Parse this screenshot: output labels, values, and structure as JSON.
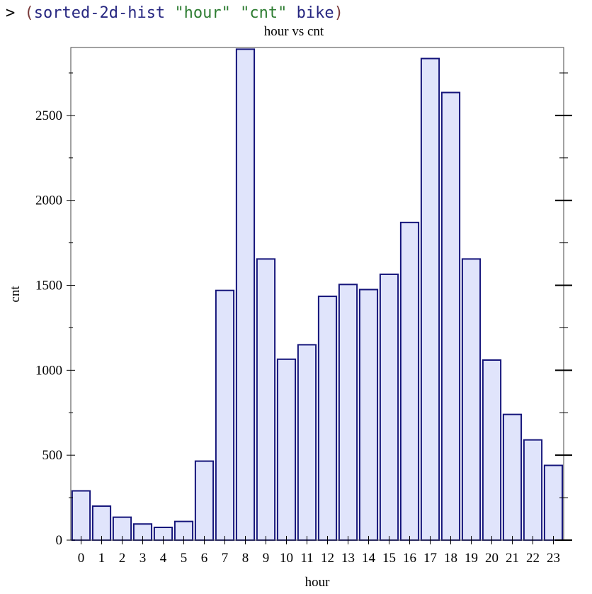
{
  "repl": {
    "prompt": ">",
    "open_paren": "(",
    "function_name": "sorted-2d-hist",
    "arg1": "\"hour\"",
    "arg2": "\"cnt\"",
    "arg3": "bike",
    "close_paren": ")"
  },
  "colors": {
    "bar_fill": "#e0e4fb",
    "bar_stroke": "#14147a",
    "axis": "#000000"
  },
  "chart_data": {
    "type": "bar",
    "title": "hour vs cnt",
    "xlabel": "hour",
    "ylabel": "cnt",
    "categories": [
      "0",
      "1",
      "2",
      "3",
      "4",
      "5",
      "6",
      "7",
      "8",
      "9",
      "10",
      "11",
      "12",
      "13",
      "14",
      "15",
      "16",
      "17",
      "18",
      "19",
      "20",
      "21",
      "22",
      "23"
    ],
    "values": [
      290,
      200,
      135,
      95,
      75,
      110,
      465,
      1470,
      2890,
      1655,
      1065,
      1150,
      1435,
      1505,
      1475,
      1565,
      1870,
      2835,
      2635,
      1655,
      1060,
      740,
      590,
      440
    ],
    "ylim": [
      0,
      2900
    ],
    "y_major_ticks": [
      0,
      500,
      1000,
      1500,
      2000,
      2500
    ],
    "y_minor_step": 250,
    "grid": false,
    "legend": "none"
  }
}
